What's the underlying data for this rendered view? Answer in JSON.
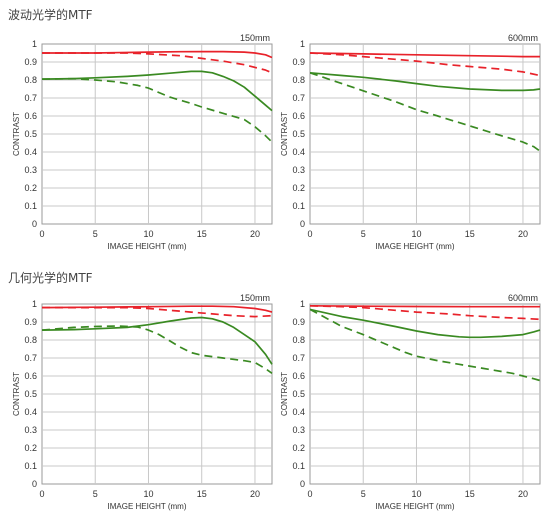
{
  "sections": [
    {
      "title": "波动光学的MTF"
    },
    {
      "title": "几何光学的MTF"
    }
  ],
  "chart_data": [
    {
      "type": "line",
      "section": "波动光学的MTF",
      "focal_label": "150mm",
      "xlabel": "IMAGE HEIGHT (mm)",
      "ylabel": "CONTRAST",
      "xlim": [
        0,
        21.6
      ],
      "ylim": [
        0,
        1
      ],
      "x_ticks": [
        0,
        5,
        10,
        15,
        20
      ],
      "y_ticks": [
        0,
        0.1,
        0.2,
        0.3,
        0.4,
        0.5,
        0.6,
        0.7,
        0.8,
        0.9,
        1
      ],
      "y_tick_labels": [
        "0",
        "0.1",
        "0.2",
        "0.3",
        "0.4",
        "0.5",
        "0.6",
        "0.7",
        "0.8",
        "0.9",
        "1"
      ],
      "grid": true,
      "series": [
        {
          "color": "#e8222a",
          "dash": false,
          "x": [
            0,
            5,
            10,
            13,
            15,
            17,
            19,
            20,
            21,
            21.6
          ],
          "y": [
            0.95,
            0.95,
            0.955,
            0.957,
            0.958,
            0.958,
            0.955,
            0.95,
            0.94,
            0.925
          ]
        },
        {
          "color": "#e8222a",
          "dash": true,
          "x": [
            0,
            5,
            8,
            10,
            13,
            15,
            17,
            19,
            20,
            21,
            21.6
          ],
          "y": [
            0.95,
            0.95,
            0.95,
            0.945,
            0.935,
            0.92,
            0.905,
            0.885,
            0.87,
            0.855,
            0.84
          ]
        },
        {
          "color": "#3a8a22",
          "dash": false,
          "x": [
            0,
            3,
            5,
            8,
            10,
            12,
            14,
            15,
            16,
            17,
            18,
            19,
            20,
            21,
            21.6
          ],
          "y": [
            0.805,
            0.808,
            0.812,
            0.82,
            0.828,
            0.838,
            0.848,
            0.848,
            0.84,
            0.82,
            0.795,
            0.76,
            0.71,
            0.66,
            0.63
          ]
        },
        {
          "color": "#3a8a22",
          "dash": true,
          "x": [
            0,
            3,
            5,
            7,
            9,
            10,
            11,
            12,
            14,
            15,
            17,
            19,
            20,
            21,
            21.6
          ],
          "y": [
            0.805,
            0.807,
            0.8,
            0.79,
            0.77,
            0.755,
            0.73,
            0.705,
            0.67,
            0.65,
            0.615,
            0.58,
            0.54,
            0.49,
            0.455
          ]
        }
      ]
    },
    {
      "type": "line",
      "section": "波动光学的MTF",
      "focal_label": "600mm",
      "xlabel": "IMAGE HEIGHT (mm)",
      "ylabel": "CONTRAST",
      "xlim": [
        0,
        21.6
      ],
      "ylim": [
        0,
        1
      ],
      "x_ticks": [
        0,
        5,
        10,
        15,
        20
      ],
      "y_ticks": [
        0,
        0.1,
        0.2,
        0.3,
        0.4,
        0.5,
        0.6,
        0.7,
        0.8,
        0.9,
        1
      ],
      "y_tick_labels": [
        "0",
        "0.1",
        "0.2",
        "0.3",
        "0.4",
        "0.5",
        "0.6",
        "0.7",
        "0.8",
        "0.9",
        "1"
      ],
      "grid": true,
      "series": [
        {
          "color": "#e8222a",
          "dash": false,
          "x": [
            0,
            5,
            10,
            15,
            18,
            20,
            21.6
          ],
          "y": [
            0.95,
            0.945,
            0.94,
            0.935,
            0.932,
            0.93,
            0.93
          ]
        },
        {
          "color": "#e8222a",
          "dash": true,
          "x": [
            0,
            3,
            5,
            8,
            10,
            13,
            15,
            18,
            20,
            21.6
          ],
          "y": [
            0.95,
            0.94,
            0.93,
            0.915,
            0.905,
            0.885,
            0.875,
            0.86,
            0.845,
            0.825
          ]
        },
        {
          "color": "#3a8a22",
          "dash": false,
          "x": [
            0,
            3,
            5,
            8,
            10,
            12,
            15,
            18,
            20,
            21,
            21.6
          ],
          "y": [
            0.84,
            0.825,
            0.815,
            0.795,
            0.78,
            0.765,
            0.75,
            0.742,
            0.742,
            0.745,
            0.75
          ]
        },
        {
          "color": "#3a8a22",
          "dash": true,
          "x": [
            0,
            3,
            5,
            8,
            10,
            12,
            15,
            18,
            20,
            21,
            21.6
          ],
          "y": [
            0.84,
            0.78,
            0.74,
            0.68,
            0.635,
            0.6,
            0.545,
            0.49,
            0.455,
            0.43,
            0.405
          ]
        }
      ]
    },
    {
      "type": "line",
      "section": "几何光学的MTF",
      "focal_label": "150mm",
      "xlabel": "IMAGE HEIGHT (mm)",
      "ylabel": "CONTRAST",
      "xlim": [
        0,
        21.6
      ],
      "ylim": [
        0,
        1
      ],
      "x_ticks": [
        0,
        5,
        10,
        15,
        20
      ],
      "y_ticks": [
        0,
        0.1,
        0.2,
        0.3,
        0.4,
        0.5,
        0.6,
        0.7,
        0.8,
        0.9,
        1
      ],
      "y_tick_labels": [
        "0",
        "0.1",
        "0.2",
        "0.3",
        "0.4",
        "0.5",
        "0.6",
        "0.7",
        "0.8",
        "0.9",
        "1"
      ],
      "grid": true,
      "series": [
        {
          "color": "#e8222a",
          "dash": false,
          "x": [
            0,
            5,
            10,
            14,
            16,
            18,
            20,
            21,
            21.6
          ],
          "y": [
            0.98,
            0.982,
            0.985,
            0.988,
            0.988,
            0.985,
            0.975,
            0.965,
            0.955
          ]
        },
        {
          "color": "#e8222a",
          "dash": true,
          "x": [
            0,
            5,
            8,
            10,
            12,
            14,
            16,
            18,
            20,
            21.6
          ],
          "y": [
            0.98,
            0.98,
            0.98,
            0.975,
            0.965,
            0.955,
            0.945,
            0.935,
            0.93,
            0.935
          ]
        },
        {
          "color": "#3a8a22",
          "dash": false,
          "x": [
            0,
            3,
            5,
            8,
            10,
            12,
            14,
            15,
            16,
            17,
            18,
            19,
            20,
            21,
            21.6
          ],
          "y": [
            0.855,
            0.858,
            0.862,
            0.87,
            0.885,
            0.905,
            0.922,
            0.925,
            0.918,
            0.9,
            0.87,
            0.83,
            0.79,
            0.72,
            0.665
          ]
        },
        {
          "color": "#3a8a22",
          "dash": true,
          "x": [
            0,
            3,
            5,
            7,
            9,
            10,
            11,
            12,
            13,
            14,
            15,
            17,
            19,
            20,
            21,
            21.6
          ],
          "y": [
            0.855,
            0.87,
            0.875,
            0.878,
            0.872,
            0.855,
            0.83,
            0.795,
            0.76,
            0.73,
            0.715,
            0.7,
            0.685,
            0.675,
            0.64,
            0.615
          ]
        }
      ]
    },
    {
      "type": "line",
      "section": "几何光学的MTF",
      "focal_label": "600mm",
      "xlabel": "IMAGE HEIGHT (mm)",
      "ylabel": "CONTRAST",
      "xlim": [
        0,
        21.6
      ],
      "ylim": [
        0,
        1
      ],
      "x_ticks": [
        0,
        5,
        10,
        15,
        20
      ],
      "y_ticks": [
        0,
        0.1,
        0.2,
        0.3,
        0.4,
        0.5,
        0.6,
        0.7,
        0.8,
        0.9,
        1
      ],
      "y_tick_labels": [
        "0",
        "0.1",
        "0.2",
        "0.3",
        "0.4",
        "0.5",
        "0.6",
        "0.7",
        "0.8",
        "0.9",
        "1"
      ],
      "grid": true,
      "series": [
        {
          "color": "#e8222a",
          "dash": false,
          "x": [
            0,
            5,
            10,
            15,
            18,
            20,
            21.6
          ],
          "y": [
            0.99,
            0.988,
            0.986,
            0.985,
            0.985,
            0.985,
            0.985
          ]
        },
        {
          "color": "#e8222a",
          "dash": true,
          "x": [
            0,
            3,
            5,
            8,
            10,
            13,
            15,
            18,
            20,
            21.6
          ],
          "y": [
            0.99,
            0.985,
            0.98,
            0.965,
            0.955,
            0.945,
            0.935,
            0.925,
            0.92,
            0.915
          ]
        },
        {
          "color": "#3a8a22",
          "dash": false,
          "x": [
            0,
            3,
            5,
            8,
            10,
            12,
            14,
            15,
            16,
            18,
            20,
            21,
            21.6
          ],
          "y": [
            0.97,
            0.93,
            0.91,
            0.875,
            0.85,
            0.83,
            0.818,
            0.815,
            0.815,
            0.82,
            0.83,
            0.845,
            0.855
          ]
        },
        {
          "color": "#3a8a22",
          "dash": true,
          "x": [
            0,
            3,
            5,
            7,
            9,
            10,
            12,
            14,
            15,
            17,
            19,
            20,
            21,
            21.6
          ],
          "y": [
            0.97,
            0.875,
            0.83,
            0.78,
            0.73,
            0.71,
            0.685,
            0.665,
            0.655,
            0.635,
            0.615,
            0.6,
            0.585,
            0.575
          ]
        }
      ]
    }
  ]
}
